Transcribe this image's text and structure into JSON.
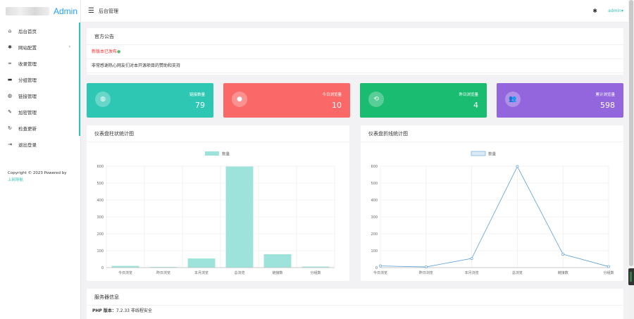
{
  "sidebar": {
    "logo_text": "Admin",
    "items": [
      {
        "icon": "home-icon",
        "glyph": "⌂",
        "label": "后台首页"
      },
      {
        "icon": "palette-icon",
        "glyph": "✱",
        "label": "网站配置",
        "has_arrow": true
      },
      {
        "icon": "link-icon",
        "glyph": "∞",
        "label": "收录管理"
      },
      {
        "icon": "folder-icon",
        "glyph": "▬",
        "label": "分组管理"
      },
      {
        "icon": "globe-icon",
        "glyph": "◍",
        "label": "链接管理"
      },
      {
        "icon": "wrench-icon",
        "glyph": "✎",
        "label": "加密管理"
      },
      {
        "icon": "refresh-icon",
        "glyph": "↻",
        "label": "检查更新"
      },
      {
        "icon": "logout-icon",
        "glyph": "⇥",
        "label": "退出登录"
      }
    ],
    "copyright": "Copyright © 2023 Powered by",
    "copyright_link": "上网导航"
  },
  "topbar": {
    "title": "后台管理",
    "user": "admin",
    "user_caret": "▾"
  },
  "notice": {
    "title": "官方公告",
    "new_version": "新版本已发布",
    "thanks": "非常感谢热心网友们对本开源项目的赞助和支持"
  },
  "stats": [
    {
      "icon": "globe-icon",
      "glyph": "◍",
      "label": "链接数量",
      "value": "79",
      "color": "#2ec7b4"
    },
    {
      "icon": "user-icon",
      "glyph": "●",
      "label": "今日浏览量",
      "value": "10",
      "color": "#fa6868"
    },
    {
      "icon": "refresh-icon",
      "glyph": "⟲",
      "label": "昨日浏览量",
      "value": "4",
      "color": "#1abc72"
    },
    {
      "icon": "users-icon",
      "glyph": "👥",
      "label": "累计浏览量",
      "value": "598",
      "color": "#9366de"
    }
  ],
  "charts": {
    "bar_title": "仪表盘柱状统计图",
    "line_title": "仪表盘折线统计图"
  },
  "chart_data": [
    {
      "type": "bar",
      "title": "",
      "legend": "数量",
      "categories": [
        "今日浏览",
        "昨日浏览",
        "本月浏览",
        "总浏览",
        "链接数",
        "分组数"
      ],
      "values": [
        10,
        4,
        54,
        598,
        79,
        6
      ],
      "ylim": [
        0,
        600
      ],
      "yticks": [
        0,
        100,
        200,
        300,
        400,
        500,
        600
      ],
      "color": "#9de3db"
    },
    {
      "type": "line",
      "title": "",
      "legend": "数量",
      "categories": [
        "今日浏览",
        "昨日浏览",
        "本月浏览",
        "总浏览",
        "链接数",
        "分组数"
      ],
      "values": [
        10,
        4,
        54,
        598,
        79,
        6
      ],
      "ylim": [
        0,
        600
      ],
      "yticks": [
        0,
        100,
        200,
        300,
        400,
        500,
        600
      ],
      "color": "#5b9fd6"
    }
  ],
  "server": {
    "title": "服务器信息",
    "php_label": "PHP 版本：",
    "php_value": "7.2.33 非线程安全"
  }
}
